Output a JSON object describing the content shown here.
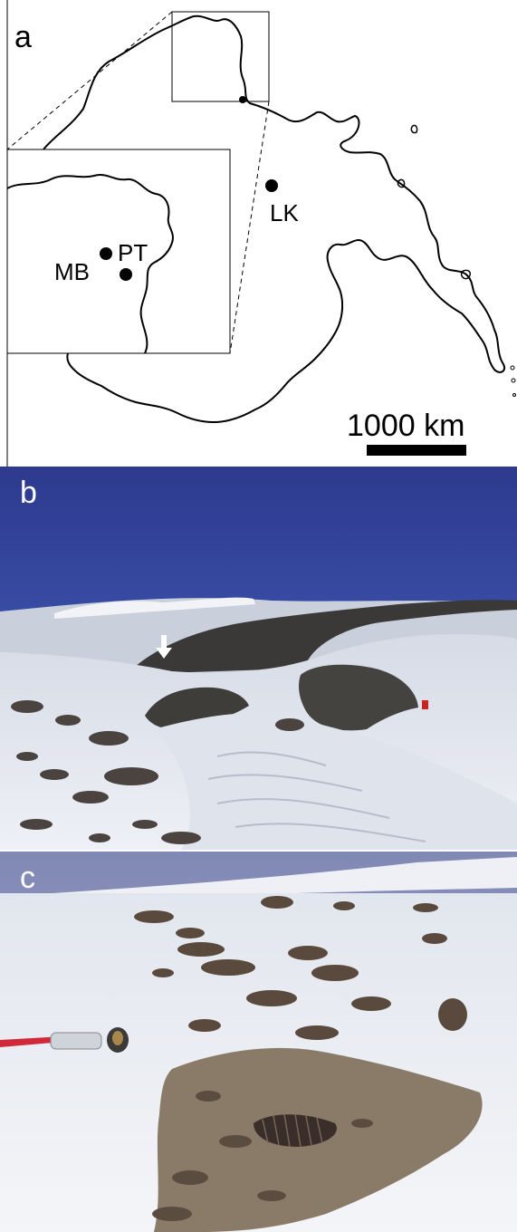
{
  "figure": {
    "panel_a": {
      "letter": "a",
      "sites": {
        "lk": "LK",
        "mb": "MB",
        "pt": "PT"
      },
      "scale_bar": "1000 km"
    },
    "panel_b": {
      "letter": "b"
    },
    "panel_c": {
      "letter": "c"
    }
  }
}
